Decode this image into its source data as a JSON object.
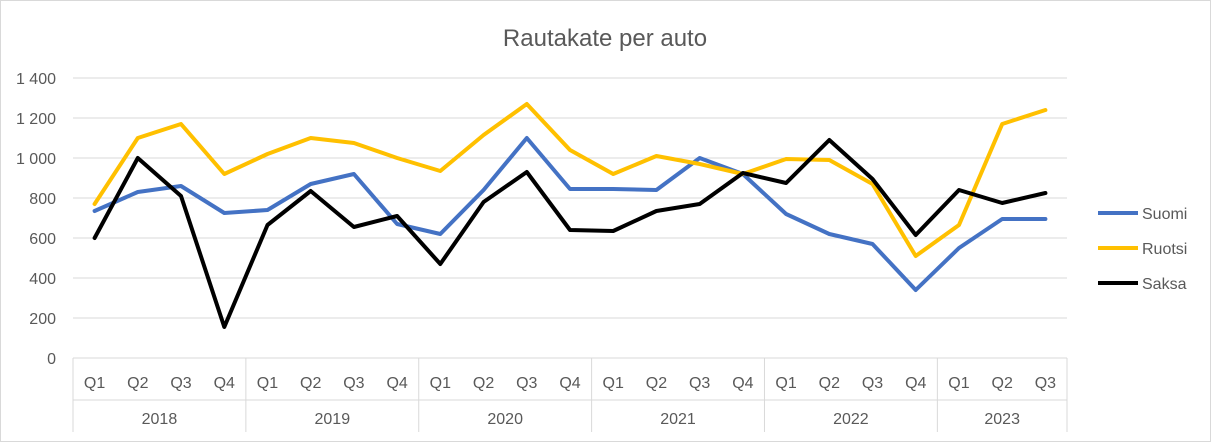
{
  "chart_data": {
    "type": "line",
    "title": "Rautakate per auto",
    "xlabel": "",
    "ylabel": "",
    "ylim": [
      0,
      1400
    ],
    "yticks": [
      0,
      200,
      400,
      600,
      800,
      1000,
      1200,
      1400
    ],
    "ytick_labels": [
      "0",
      "200",
      "400",
      "600",
      "800",
      "1 000",
      "1 200",
      "1 400"
    ],
    "groups": [
      {
        "label": "2018",
        "quarters": [
          "Q1",
          "Q2",
          "Q3",
          "Q4"
        ]
      },
      {
        "label": "2019",
        "quarters": [
          "Q1",
          "Q2",
          "Q3",
          "Q4"
        ]
      },
      {
        "label": "2020",
        "quarters": [
          "Q1",
          "Q2",
          "Q3",
          "Q4"
        ]
      },
      {
        "label": "2021",
        "quarters": [
          "Q1",
          "Q2",
          "Q3",
          "Q4"
        ]
      },
      {
        "label": "2022",
        "quarters": [
          "Q1",
          "Q2",
          "Q3",
          "Q4"
        ]
      },
      {
        "label": "2023",
        "quarters": [
          "Q1",
          "Q2",
          "Q3"
        ]
      }
    ],
    "grid": true,
    "legend_position": "right",
    "series": [
      {
        "name": "Suomi",
        "color": "#4472C4",
        "values": [
          735,
          830,
          860,
          725,
          740,
          870,
          920,
          670,
          620,
          840,
          1100,
          845,
          845,
          840,
          1000,
          920,
          720,
          620,
          570,
          340,
          550,
          695,
          695
        ]
      },
      {
        "name": "Ruotsi",
        "color": "#FFC000",
        "values": [
          770,
          1100,
          1170,
          920,
          1020,
          1100,
          1075,
          1000,
          935,
          1115,
          1270,
          1040,
          920,
          1010,
          970,
          920,
          995,
          990,
          870,
          510,
          665,
          1170,
          1240
        ]
      },
      {
        "name": "Saksa",
        "color": "#000000",
        "values": [
          600,
          1000,
          810,
          155,
          665,
          835,
          655,
          710,
          470,
          780,
          930,
          640,
          635,
          735,
          770,
          925,
          875,
          1090,
          895,
          615,
          840,
          775,
          825
        ]
      }
    ]
  }
}
